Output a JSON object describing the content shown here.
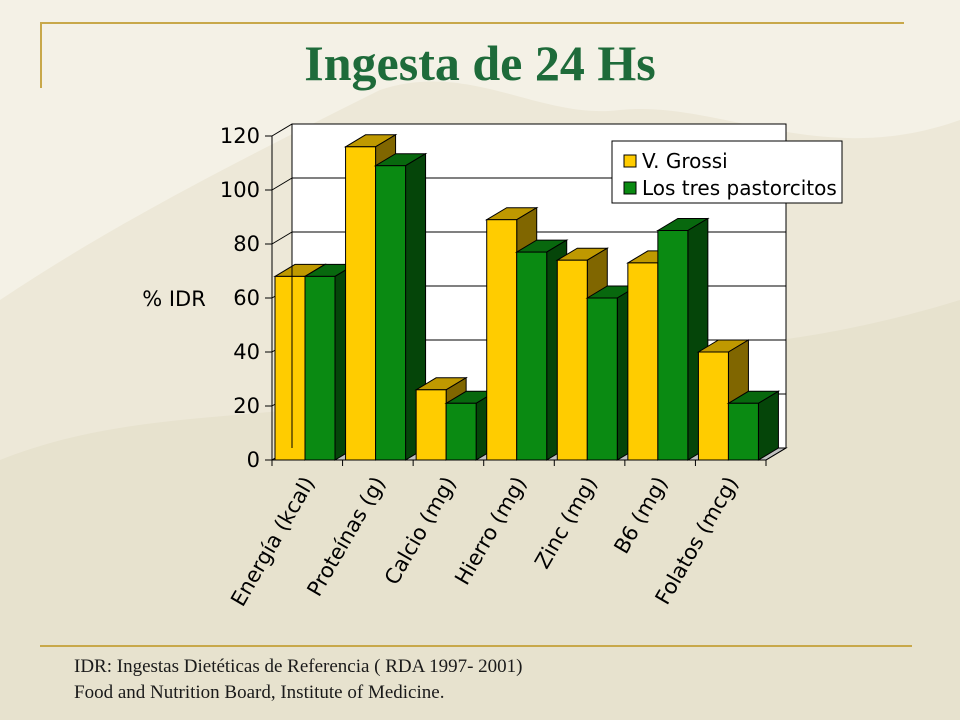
{
  "slide": {
    "title": "Ingesta de 24 Hs",
    "footnote": [
      "IDR: Ingestas Dietéticas de Referencia ( RDA 1997- 2001)",
      "Food and Nutrition Board, Institute of Medicine."
    ]
  },
  "colors": {
    "title": "#1e6b3a",
    "accent_line": "#c8a84a",
    "series_1": "#ffcc00",
    "series_2": "#0a8a12"
  },
  "chart_data": {
    "type": "bar",
    "style": "3d-clustered",
    "ylabel": "% IDR",
    "ylim": [
      0,
      120
    ],
    "yticks": [
      0,
      20,
      40,
      60,
      80,
      100,
      120
    ],
    "grid": true,
    "legend_position": "top-right",
    "categories": [
      "Energía (kcal)",
      "Proteínas (g)",
      "Calcio (mg)",
      "Hierro (mg)",
      "Zinc (mg)",
      "B6 (mg)",
      "Folatos (mcg)"
    ],
    "series": [
      {
        "name": "V. Grossi",
        "values": [
          68,
          116,
          26,
          89,
          74,
          73,
          40
        ]
      },
      {
        "name": "Los tres pastorcitos",
        "values": [
          68,
          109,
          21,
          77,
          60,
          85,
          21
        ]
      }
    ]
  }
}
